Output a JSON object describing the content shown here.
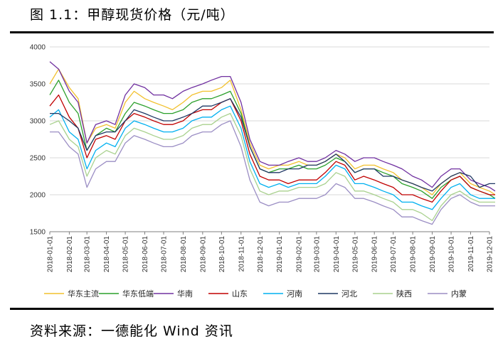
{
  "figure": {
    "title": "图 1.1：甲醇现货价格（元/吨）",
    "source": "资料来源：一德能化  Wind 资讯"
  },
  "chart_data": {
    "type": "line",
    "title": "",
    "xlabel": "",
    "ylabel": "",
    "ylim": [
      1500,
      4000
    ],
    "yticks": [
      1500,
      2000,
      2500,
      3000,
      3500,
      4000
    ],
    "x_tick_labels": [
      "2018-01-01",
      "2018-02-01",
      "2018-03-01",
      "2018-04-01",
      "2018-05-01",
      "2018-06-01",
      "2018-07-01",
      "2018-08-01",
      "2018-09-01",
      "2018-10-01",
      "2018-11-01",
      "2018-12-01",
      "2019-01-01",
      "2019-02-01",
      "2019-03-01",
      "2019-04-01",
      "2019-05-01",
      "2019-06-01",
      "2019-07-01",
      "2019-08-01",
      "2019-09-01",
      "2019-10-01",
      "2019-11-01",
      "2019-12-01"
    ],
    "grid": "horizontal",
    "legend_position": "bottom",
    "x": [
      "2018-01-01",
      "2018-01-15",
      "2018-02-01",
      "2018-02-15",
      "2018-03-01",
      "2018-03-15",
      "2018-04-01",
      "2018-04-15",
      "2018-05-01",
      "2018-05-15",
      "2018-06-01",
      "2018-06-15",
      "2018-07-01",
      "2018-07-15",
      "2018-08-01",
      "2018-08-15",
      "2018-09-01",
      "2018-09-15",
      "2018-10-01",
      "2018-10-15",
      "2018-11-01",
      "2018-11-15",
      "2018-12-01",
      "2018-12-15",
      "2019-01-01",
      "2019-01-15",
      "2019-02-01",
      "2019-02-15",
      "2019-03-01",
      "2019-03-15",
      "2019-04-01",
      "2019-04-15",
      "2019-05-01",
      "2019-05-15",
      "2019-06-01",
      "2019-06-15",
      "2019-07-01",
      "2019-07-15",
      "2019-08-01",
      "2019-08-15",
      "2019-09-01",
      "2019-09-15",
      "2019-10-01",
      "2019-10-15",
      "2019-11-01",
      "2019-11-15",
      "2019-12-01",
      "2019-12-10"
    ],
    "series": [
      {
        "name": "华东主流",
        "color": "#f2c12e",
        "values": [
          3500,
          3700,
          3450,
          3300,
          2700,
          2900,
          2950,
          2900,
          3250,
          3400,
          3300,
          3250,
          3200,
          3150,
          3250,
          3350,
          3400,
          3400,
          3450,
          3550,
          3150,
          2700,
          2400,
          2350,
          2400,
          2400,
          2450,
          2400,
          2400,
          2450,
          2550,
          2500,
          2350,
          2400,
          2400,
          2350,
          2300,
          2200,
          2150,
          2100,
          2000,
          2150,
          2250,
          2300,
          2150,
          2100,
          2050,
          2000
        ]
      },
      {
        "name": "华东低端",
        "color": "#2ca02c",
        "values": [
          3350,
          3550,
          3250,
          3100,
          2600,
          2800,
          2900,
          2850,
          3100,
          3250,
          3200,
          3150,
          3100,
          3100,
          3150,
          3250,
          3300,
          3300,
          3350,
          3400,
          3100,
          2650,
          2350,
          2300,
          2350,
          2350,
          2400,
          2350,
          2350,
          2400,
          2500,
          2450,
          2300,
          2350,
          2350,
          2300,
          2250,
          2150,
          2100,
          2050,
          1950,
          2100,
          2200,
          2250,
          2100,
          2050,
          2000,
          1950
        ]
      },
      {
        "name": "华南",
        "color": "#7030a0",
        "values": [
          3800,
          3700,
          3400,
          3250,
          2700,
          2950,
          3000,
          2950,
          3350,
          3500,
          3450,
          3350,
          3350,
          3300,
          3400,
          3450,
          3500,
          3550,
          3600,
          3600,
          3250,
          2750,
          2450,
          2400,
          2400,
          2450,
          2500,
          2450,
          2450,
          2500,
          2600,
          2550,
          2450,
          2500,
          2500,
          2450,
          2400,
          2350,
          2250,
          2200,
          2100,
          2250,
          2350,
          2350,
          2200,
          2150,
          2100,
          2050
        ]
      },
      {
        "name": "山东",
        "color": "#c00000",
        "values": [
          3200,
          3350,
          3050,
          2900,
          2500,
          2750,
          2800,
          2750,
          3000,
          3100,
          3050,
          3000,
          2950,
          2950,
          3000,
          3100,
          3150,
          3150,
          3250,
          3300,
          3000,
          2550,
          2250,
          2200,
          2200,
          2150,
          2200,
          2200,
          2200,
          2300,
          2450,
          2400,
          2200,
          2250,
          2200,
          2150,
          2100,
          2000,
          2000,
          1950,
          1900,
          2050,
          2200,
          2250,
          2100,
          2050,
          2000,
          2000
        ]
      },
      {
        "name": "河南",
        "color": "#00b0f0",
        "values": [
          3050,
          3150,
          2850,
          2750,
          2350,
          2600,
          2700,
          2650,
          2900,
          3000,
          2950,
          2900,
          2850,
          2850,
          2900,
          3000,
          3050,
          3050,
          3150,
          3200,
          2900,
          2450,
          2150,
          2100,
          2150,
          2100,
          2150,
          2150,
          2150,
          2250,
          2400,
          2350,
          2150,
          2150,
          2100,
          2050,
          2000,
          1900,
          1900,
          1850,
          1800,
          1950,
          2100,
          2150,
          2000,
          1950,
          1950,
          1950
        ]
      },
      {
        "name": "河北",
        "color": "#1f3864",
        "values": [
          3100,
          3100,
          3000,
          2900,
          2600,
          2800,
          2850,
          2850,
          3000,
          3150,
          3100,
          3050,
          3000,
          3000,
          3050,
          3100,
          3200,
          3200,
          3250,
          3300,
          3050,
          2650,
          2350,
          2300,
          2300,
          2350,
          2350,
          2400,
          2400,
          2450,
          2550,
          2450,
          2300,
          2350,
          2350,
          2250,
          2250,
          2200,
          2150,
          2100,
          2050,
          2150,
          2250,
          2300,
          2250,
          2100,
          2150,
          2150
        ]
      },
      {
        "name": "陕西",
        "color": "#a9d18e",
        "values": [
          2950,
          3000,
          2750,
          2650,
          2250,
          2500,
          2600,
          2550,
          2800,
          2900,
          2850,
          2800,
          2750,
          2750,
          2800,
          2900,
          2950,
          2950,
          3050,
          3100,
          2800,
          2350,
          2050,
          2000,
          2050,
          2050,
          2100,
          2100,
          2100,
          2150,
          2300,
          2250,
          2050,
          2050,
          2000,
          1950,
          1900,
          1800,
          1800,
          1750,
          1650,
          1850,
          2000,
          2050,
          1950,
          1900,
          1900,
          1900
        ]
      },
      {
        "name": "内蒙",
        "color": "#9b8ec4",
        "values": [
          2850,
          2850,
          2650,
          2550,
          2100,
          2350,
          2450,
          2450,
          2700,
          2800,
          2750,
          2700,
          2650,
          2650,
          2700,
          2800,
          2850,
          2850,
          2950,
          3000,
          2650,
          2200,
          1900,
          1850,
          1900,
          1900,
          1950,
          1950,
          1950,
          2000,
          2150,
          2100,
          1950,
          1950,
          1900,
          1850,
          1800,
          1700,
          1700,
          1650,
          1600,
          1800,
          1950,
          2000,
          1900,
          1850,
          1850,
          1850
        ]
      }
    ]
  }
}
